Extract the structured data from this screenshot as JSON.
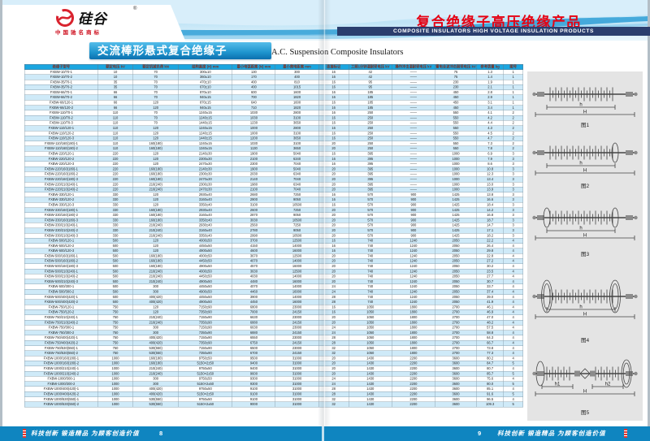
{
  "logo": {
    "name": "硅谷",
    "registered": "®",
    "subtitle": "中国驰名商标"
  },
  "header": {
    "title_cn": "复合绝缘子高压绝缘产品",
    "title_en": "COMPOSITE INSULATORS HIGH VOLTAGE INSULATION PRODUCTS"
  },
  "section": {
    "title_cn": "交流棒形悬式复合绝缘子",
    "title_en": "A.C. Suspension Composite Insulators"
  },
  "footer": {
    "slogan": "科技创新 锻造精品 为顾客创造价值",
    "left_page": "8",
    "right_page": "9"
  },
  "table": {
    "headers": [
      "绝缘子型号",
      "额定电压 kV",
      "额定机械负荷 kN",
      "结构高度 (H) mm",
      "最小电弧距离 (N) mm",
      "最小爬电距离 mm",
      "连接标记",
      "工频1分钟湿耐受电压 kV",
      "操作冲击湿耐受电压 kV",
      "雷电全波冲击耐受电压 kV",
      "参考质量 kg",
      "图号"
    ],
    "rows": [
      [
        "FXBW-10/70-1",
        "10",
        "70",
        "300±10",
        "130",
        "300",
        "16",
        "42",
        "——",
        "75",
        "1.3",
        "1"
      ],
      [
        "FXBW-10/70-2",
        "10",
        "70",
        "360±10",
        "170",
        "400",
        "16",
        "42",
        "——",
        "75",
        "1.4",
        "1"
      ],
      [
        "FXBW-35/70-1",
        "35",
        "70",
        "470±10",
        "400",
        "810",
        "16",
        "95",
        "——",
        "230",
        "1.9",
        "1"
      ],
      [
        "FXBW-35/70-2",
        "35",
        "70",
        "670±10",
        "400",
        "1015",
        "16",
        "95",
        "——",
        "230",
        "2.1",
        "1"
      ],
      [
        "FXBW-66/70-1",
        "66",
        "70",
        "870±10",
        "600",
        "1600",
        "16",
        "185",
        "——",
        "450",
        "2.8",
        "1"
      ],
      [
        "FXBW-66/70-2",
        "66",
        "70",
        "940±15",
        "700",
        "1820",
        "16",
        "185",
        "——",
        "450",
        "2.9",
        "1"
      ],
      [
        "FXBW-66/120-1",
        "66",
        "120",
        "870±15",
        "640",
        "1600",
        "16",
        "185",
        "——",
        "450",
        "3.1",
        "1"
      ],
      [
        "FXBW-66/120-2",
        "66",
        "120",
        "940±15",
        "710",
        "1820",
        "16",
        "185",
        "——",
        "450",
        "3.4",
        "1"
      ],
      [
        "FXBW-110/70-1",
        "110",
        "70",
        "1240±15",
        "1030",
        "2800",
        "16",
        "250",
        "——",
        "550",
        "4.1",
        "2"
      ],
      [
        "FXBW-110/70-2",
        "110",
        "70",
        "1240±15",
        "1030",
        "3100",
        "16",
        "250",
        "——",
        "550",
        "4.2",
        "2"
      ],
      [
        "FXBW-110/70-3",
        "110",
        "70",
        "1440±15",
        "1230",
        "3650",
        "16",
        "250",
        "——",
        "550",
        "4.4",
        "2"
      ],
      [
        "FXBW-110/120-1",
        "110",
        "120",
        "1240±15",
        "1000",
        "2800",
        "16",
        "250",
        "——",
        "550",
        "4.3",
        "2"
      ],
      [
        "FXBW-110/120-2",
        "110",
        "120",
        "1240±15",
        "1000",
        "3100",
        "16",
        "250",
        "——",
        "550",
        "4.5",
        "2"
      ],
      [
        "FXBW-110/120-3",
        "110",
        "120",
        "1440±15",
        "1200",
        "3650",
        "16",
        "250",
        "——",
        "550",
        "4.7",
        "2"
      ],
      [
        "FXBW-110/160(180)-1",
        "110",
        "160(180)",
        "1240±15",
        "1030",
        "3100",
        "20",
        "250",
        "——",
        "550",
        "7.3",
        "2"
      ],
      [
        "FXBW-110/160(180)-2",
        "110",
        "160(180)",
        "1340±15",
        "1130",
        "3650",
        "20",
        "250",
        "——",
        "550",
        "7.8",
        "2"
      ],
      [
        "FXBW-220/120-1",
        "220",
        "120",
        "2140±30",
        "1900",
        "5040",
        "16",
        "395",
        "——",
        "1000",
        "6.9",
        "3"
      ],
      [
        "FXBW-220/120-2",
        "220",
        "120",
        "2300±30",
        "2100",
        "6340",
        "16",
        "395",
        "——",
        "1000",
        "7.9",
        "3"
      ],
      [
        "FXBW-220/120-3",
        "220",
        "120",
        "2470±30",
        "2300",
        "7040",
        "16",
        "395",
        "——",
        "1000",
        "8.6",
        "3"
      ],
      [
        "FXBW-220/160(180)-1",
        "220",
        "160(180)",
        "2140±30",
        "1900",
        "5040",
        "20",
        "395",
        "——",
        "1000",
        "10.8",
        "3"
      ],
      [
        "FXBW-220/160(180)-2",
        "220",
        "160(180)",
        "2300±30",
        "2030",
        "6340",
        "20",
        "395",
        "——",
        "1000",
        "12.3",
        "3"
      ],
      [
        "FXBW-220/160(180)-3",
        "220",
        "160(180)",
        "2470±30",
        "2140",
        "7040",
        "20",
        "395",
        "——",
        "1000",
        "13.4",
        "3"
      ],
      [
        "FXBW-220/210(240)-1",
        "220",
        "210(240)",
        "2300±30",
        "1980",
        "6340",
        "20",
        "395",
        "——",
        "1000",
        "13.0",
        "3"
      ],
      [
        "FXBW-220/210(240)-2",
        "220",
        "210(240)",
        "2470±30",
        "2100",
        "7040",
        "20",
        "395",
        "——",
        "1000",
        "13.9",
        "3"
      ],
      [
        "FXBW-330/120-1",
        "330",
        "120",
        "2930±40",
        "2680",
        "7250",
        "16",
        "570",
        "900",
        "1425",
        "13.8",
        "3"
      ],
      [
        "FXBW-330/120-2",
        "330",
        "120",
        "3160±40",
        "2900",
        "9050",
        "16",
        "570",
        "900",
        "1425",
        "16.6",
        "3"
      ],
      [
        "FXBW-330/120-3",
        "330",
        "120",
        "3350±40",
        "3100",
        "10500",
        "16",
        "570",
        "900",
        "1425",
        "18.4",
        "3"
      ],
      [
        "FXBW-330/160(180)-1",
        "330",
        "160(180)",
        "2930±40",
        "2600",
        "7250",
        "20",
        "570",
        "900",
        "1425",
        "14.2",
        "3"
      ],
      [
        "FXBW-330/160(180)-2",
        "330",
        "160(180)",
        "3160±40",
        "2870",
        "9050",
        "20",
        "570",
        "900",
        "1425",
        "16.8",
        "3"
      ],
      [
        "FXBW-330/160(180)-3",
        "330",
        "160(180)",
        "3350±40",
        "3030",
        "10500",
        "20",
        "570",
        "900",
        "1425",
        "18.7",
        "3"
      ],
      [
        "FXBW-330/210(240)-1",
        "330",
        "210(240)",
        "2930±40",
        "2560",
        "7250",
        "20",
        "570",
        "900",
        "1425",
        "14.7",
        "3"
      ],
      [
        "FXBW-330/210(240)-2",
        "330",
        "210(240)",
        "3160±40",
        "2780",
        "9050",
        "20",
        "570",
        "900",
        "1425",
        "17.1",
        "3"
      ],
      [
        "FXBW-330/210(240)-3",
        "330",
        "210(240)",
        "3350±40",
        "2990",
        "10500",
        "20",
        "570",
        "900",
        "1425",
        "18.2",
        "3"
      ],
      [
        "FXBW-500/120-1",
        "500",
        "120",
        "4000±50",
        "3700",
        "12500",
        "16",
        "740",
        "1240",
        "2050",
        "22.2",
        "4"
      ],
      [
        "FXBW-500/120-2",
        "500",
        "120",
        "4450±50",
        "4150",
        "14000",
        "16",
        "740",
        "1240",
        "2050",
        "26.4",
        "4"
      ],
      [
        "FXBW-500/120-3",
        "500",
        "120",
        "4900±50",
        "4600",
        "16000",
        "16",
        "740",
        "1240",
        "2050",
        "29.8",
        "4"
      ],
      [
        "FXBW-500/160(180)-1",
        "500",
        "160(180)",
        "4000±50",
        "3670",
        "12500",
        "20",
        "740",
        "1240",
        "2050",
        "22.8",
        "4"
      ],
      [
        "FXBW-500/160(180)-2",
        "500",
        "160(180)",
        "4450±50",
        "4070",
        "14000",
        "20",
        "740",
        "1240",
        "2050",
        "27.2",
        "4"
      ],
      [
        "FXBW-500/160(180)-3",
        "500",
        "160(180)",
        "4900±50",
        "4570",
        "16000",
        "20",
        "740",
        "1240",
        "2050",
        "30.2",
        "4"
      ],
      [
        "FXBW-500/210(240)-1",
        "500",
        "210(240)",
        "4000±50",
        "3630",
        "12500",
        "20",
        "740",
        "1240",
        "2050",
        "23.5",
        "4"
      ],
      [
        "FXBW-500/210(240)-2",
        "500",
        "210(240)",
        "4450±50",
        "4030",
        "14000",
        "20",
        "740",
        "1240",
        "2050",
        "27.7",
        "4"
      ],
      [
        "FXBW-500/210(240)-3",
        "500",
        "210(240)",
        "4900±50",
        "4480",
        "16000",
        "20",
        "740",
        "1240",
        "2050",
        "30.7",
        "4"
      ],
      [
        "FXBW-500/300-1",
        "500",
        "300",
        "4450±50",
        "4070",
        "14000",
        "24",
        "740",
        "1240",
        "2050",
        "33.7",
        "4"
      ],
      [
        "FXBW-500/300-2",
        "500",
        "300",
        "4900±50",
        "4460",
        "16000",
        "24",
        "740",
        "1240",
        "2050",
        "37.4",
        "4"
      ],
      [
        "FXBW-500/400(420)-1",
        "500",
        "400(420)",
        "4450±50",
        "3900",
        "14000",
        "28",
        "740",
        "1240",
        "2050",
        "39.0",
        "4"
      ],
      [
        "FXBW-500/400(420)-2",
        "500",
        "400(420)",
        "4900±50",
        "4450",
        "16000",
        "28",
        "740",
        "1240",
        "2050",
        "41.9",
        "4"
      ],
      [
        "FXBW-750/120-1",
        "750",
        "120",
        "7150±90",
        "6800",
        "23000",
        "16",
        "1050",
        "1800",
        "2700",
        "46.1",
        "4"
      ],
      [
        "FXBW-750/120-2",
        "750",
        "120",
        "7350±90",
        "7000",
        "24150",
        "16",
        "1050",
        "1800",
        "2700",
        "46.9",
        "4"
      ],
      [
        "FXBW-750/210(240)-1",
        "750",
        "210(240)",
        "7150±90",
        "6630",
        "23000",
        "20",
        "1050",
        "1800",
        "2700",
        "47.0",
        "4"
      ],
      [
        "FXBW-750/210(240)-2",
        "750",
        "210(240)",
        "7350±90",
        "6880",
        "24150",
        "20",
        "1050",
        "1800",
        "2700",
        "48.2",
        "4"
      ],
      [
        "FXBW-750/300-1",
        "750",
        "300",
        "7150±90",
        "6630",
        "23000",
        "24",
        "1050",
        "1800",
        "2700",
        "57.5",
        "4"
      ],
      [
        "FXBW-750/300-2",
        "750",
        "300",
        "7350±90",
        "6880",
        "24150",
        "24",
        "1050",
        "1800",
        "2700",
        "58.8",
        "4"
      ],
      [
        "FXBW-750/400(420)-1",
        "750",
        "400(420)",
        "7150±90",
        "6550",
        "23000",
        "28",
        "1050",
        "1800",
        "2700",
        "64.3",
        "4"
      ],
      [
        "FXBW-750/400(420)-2",
        "750",
        "400(420)",
        "7350±90",
        "6750",
        "24150",
        "28",
        "1050",
        "1800",
        "2700",
        "66.7",
        "4"
      ],
      [
        "FXBW-750/530(550)-1",
        "750",
        "530(550)",
        "7150±90",
        "6500",
        "23000",
        "32",
        "1050",
        "1800",
        "2700",
        "73.8",
        "4"
      ],
      [
        "FXBW-750/530(550)-2",
        "750",
        "530(550)",
        "7350±90",
        "6700",
        "24150",
        "32",
        "1050",
        "1800",
        "2700",
        "77.3",
        "4"
      ],
      [
        "FXBW-1000/160(180)-1",
        "1000",
        "160(180)",
        "9750±50",
        "9500",
        "31000",
        "20",
        "1430",
        "2200",
        "3600",
        "80.2",
        "4"
      ],
      [
        "FXBW-1000/160(180)-2",
        "1000",
        "160(180)",
        "5150×2±50",
        "9400",
        "31000",
        "20",
        "1430",
        "2200",
        "3600",
        "84.7",
        "5"
      ],
      [
        "FXBW-1000/210(240)-1",
        "1000",
        "210(240)",
        "9750±50",
        "9400",
        "31000",
        "20",
        "1430",
        "2200",
        "3600",
        "80.7",
        "4"
      ],
      [
        "FXBW-1000/210(240)-2",
        "1000",
        "210(240)",
        "5150×2±50",
        "9600",
        "31000",
        "20",
        "1430",
        "2200",
        "3600",
        "85.7",
        "5"
      ],
      [
        "FXBW-1000/300-1",
        "1000",
        "300",
        "9750±50",
        "9300",
        "31000",
        "24",
        "1430",
        "2200",
        "3600",
        "75.6",
        "4"
      ],
      [
        "FXBW-1000/300-2",
        "1000",
        "300",
        "5150×2±50",
        "9300",
        "31000",
        "24",
        "1430",
        "2200",
        "3600",
        "80.0",
        "5"
      ],
      [
        "FXBW-1000/400(420)-1",
        "1000",
        "400(420)",
        "9750±50",
        "9100",
        "31000",
        "28",
        "1430",
        "2200",
        "3600",
        "85.1",
        "4"
      ],
      [
        "FXBW-1000/400(420)-2",
        "1000",
        "400(420)",
        "5150×2±50",
        "9100",
        "31000",
        "28",
        "1430",
        "2200",
        "3600",
        "91.6",
        "5"
      ],
      [
        "FXBW-1000/530(550)-1",
        "1000",
        "530(550)",
        "9750±50",
        "9100",
        "31000",
        "32",
        "1430",
        "2200",
        "3600",
        "96.5",
        "4"
      ],
      [
        "FXBW-1000/530(550)-2",
        "1000",
        "530(550)",
        "5150×2±50",
        "9000",
        "31000",
        "32",
        "1430",
        "2200",
        "3600",
        "109.3",
        "5"
      ]
    ]
  },
  "diagrams": [
    {
      "caption": "图1",
      "inner_dims": [
        "h"
      ],
      "outer_dim": "H"
    },
    {
      "caption": "图2",
      "inner_dims": [
        "h"
      ],
      "outer_dim": "H"
    },
    {
      "caption": "图3",
      "inner_dims": [
        "h"
      ],
      "outer_dim": "H"
    },
    {
      "caption": "图4",
      "inner_dims": [
        "h"
      ],
      "outer_dim": "H"
    },
    {
      "caption": "图5",
      "inner_dims": [
        "h1",
        "h2"
      ],
      "outer_dim": "H"
    }
  ]
}
